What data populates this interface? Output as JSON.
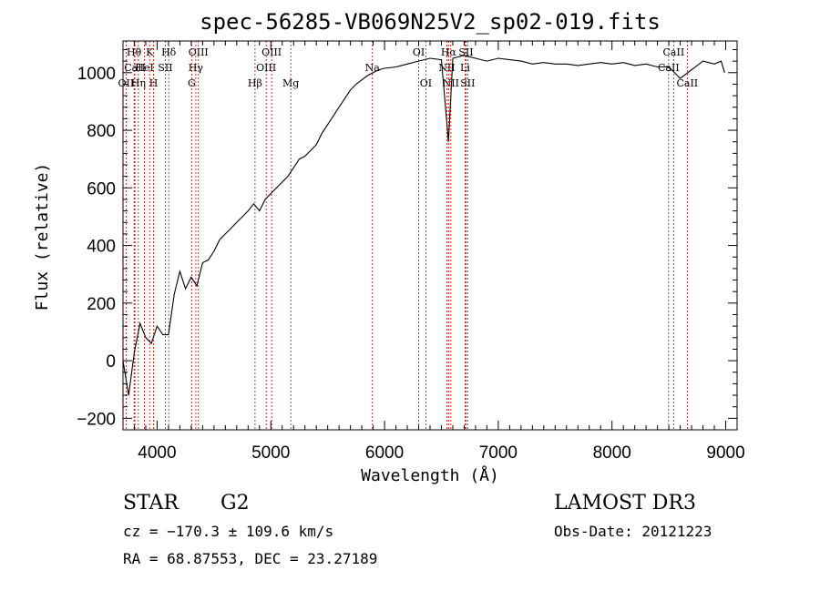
{
  "chart_data": {
    "type": "line",
    "title": "spec-56285-VB069N25V2_sp02-019.fits",
    "xlabel": "Wavelength (Å)",
    "ylabel": "Flux (relative)",
    "xlim": [
      3700,
      9100
    ],
    "ylim": [
      -240,
      1110
    ],
    "x_ticks": [
      4000,
      5000,
      6000,
      7000,
      8000,
      9000
    ],
    "x_tick_labels": [
      "4000",
      "5000",
      "6000",
      "7000",
      "8000",
      "9000"
    ],
    "y_ticks": [
      -200,
      0,
      200,
      400,
      600,
      800,
      1000
    ],
    "y_tick_labels": [
      "−200",
      "0",
      "200",
      "400",
      "600",
      "800",
      "1000"
    ],
    "grid": false,
    "series": [
      {
        "name": "flux",
        "x": [
          3700,
          3750,
          3800,
          3850,
          3900,
          3950,
          4000,
          4050,
          4100,
          4150,
          4200,
          4250,
          4300,
          4350,
          4400,
          4450,
          4500,
          4550,
          4600,
          4650,
          4700,
          4750,
          4800,
          4850,
          4900,
          4950,
          5000,
          5050,
          5100,
          5150,
          5200,
          5250,
          5300,
          5350,
          5400,
          5450,
          5500,
          5550,
          5600,
          5650,
          5700,
          5750,
          5800,
          5850,
          5900,
          5950,
          6000,
          6100,
          6200,
          6300,
          6400,
          6500,
          6562,
          6600,
          6700,
          6800,
          6900,
          7000,
          7100,
          7200,
          7300,
          7400,
          7500,
          7600,
          7700,
          7800,
          7900,
          8000,
          8100,
          8200,
          8300,
          8400,
          8500,
          8600,
          8700,
          8800,
          8900,
          8960,
          8990
        ],
        "y": [
          0,
          -120,
          30,
          130,
          80,
          60,
          120,
          90,
          90,
          230,
          310,
          250,
          290,
          260,
          340,
          350,
          380,
          420,
          440,
          460,
          480,
          500,
          520,
          545,
          520,
          560,
          580,
          600,
          620,
          640,
          670,
          700,
          710,
          730,
          750,
          790,
          820,
          850,
          880,
          910,
          940,
          960,
          975,
          990,
          1000,
          1010,
          1015,
          1020,
          1030,
          1040,
          1050,
          1045,
          760,
          1050,
          1060,
          1050,
          1040,
          1050,
          1045,
          1040,
          1030,
          1035,
          1030,
          1030,
          1025,
          1030,
          1035,
          1030,
          1035,
          1025,
          1030,
          1020,
          1020,
          980,
          1010,
          1040,
          1030,
          1040,
          1000
        ]
      }
    ],
    "lines": [
      {
        "label": "Hθ",
        "x": 3797,
        "row": 0
      },
      {
        "label": "CaII",
        "x": 3805,
        "row": 1
      },
      {
        "label": "OII",
        "x": 3727,
        "row": 2
      },
      {
        "label": "K",
        "x": 3934,
        "row": 0
      },
      {
        "label": "HeI",
        "x": 3889,
        "row": 1
      },
      {
        "label": "Hη",
        "x": 3835,
        "row": 2
      },
      {
        "label": "SII",
        "x": 4072,
        "row": 1
      },
      {
        "label": "H",
        "x": 3969,
        "row": 2
      },
      {
        "label": "Hδ",
        "x": 4102,
        "row": 0
      },
      {
        "label": "OIII",
        "x": 4363,
        "row": 0
      },
      {
        "label": "Hγ",
        "x": 4340,
        "row": 1
      },
      {
        "label": "G",
        "x": 4304,
        "row": 2
      },
      {
        "label": "Hβ",
        "x": 4861,
        "row": 2
      },
      {
        "label": "OIII",
        "x": 5007,
        "row": 0
      },
      {
        "label": "OIII",
        "x": 4959,
        "row": 1
      },
      {
        "label": "Mg",
        "x": 5175,
        "row": 2
      },
      {
        "label": "Na",
        "x": 5893,
        "row": 1
      },
      {
        "label": "OI",
        "x": 6300,
        "row": 0
      },
      {
        "label": "OI",
        "x": 6363,
        "row": 2
      },
      {
        "label": "Hα",
        "x": 6563,
        "row": 0
      },
      {
        "label": "NII",
        "x": 6548,
        "row": 1
      },
      {
        "label": "NII",
        "x": 6583,
        "row": 2
      },
      {
        "label": "SII",
        "x": 6716,
        "row": 0
      },
      {
        "label": "Li",
        "x": 6708,
        "row": 1
      },
      {
        "label": "SII",
        "x": 6731,
        "row": 2
      },
      {
        "label": "CaII",
        "x": 8542,
        "row": 0
      },
      {
        "label": "CaII",
        "x": 8498,
        "row": 1
      },
      {
        "label": "CaII",
        "x": 8662,
        "row": 2
      }
    ]
  },
  "info": {
    "object_class": "STAR",
    "subclass": "G2",
    "survey": "LAMOST DR3",
    "redshift_line": "cz = −170.3 ± 109.6 km/s",
    "obs_date_line": "Obs-Date: 20121223",
    "coords_line": "RA =  68.87553, DEC =  23.27189"
  },
  "colors": {
    "line": "#000000",
    "marker": "#cc0000",
    "background": "#ffffff"
  }
}
